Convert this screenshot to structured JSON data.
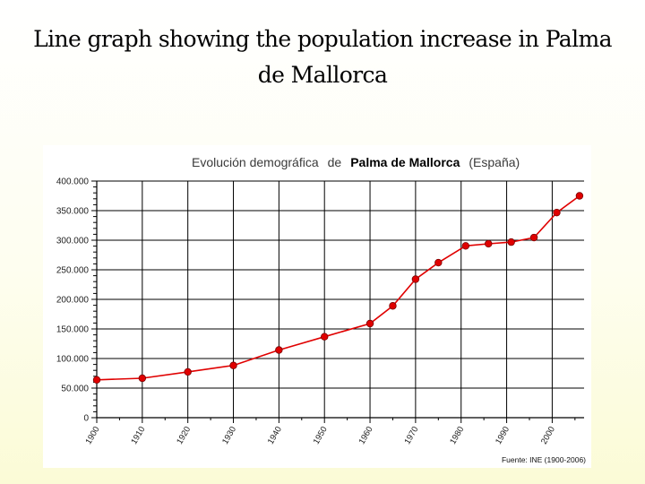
{
  "slide": {
    "title": "Line graph showing the population increase in Palma de Mallorca"
  },
  "chart_data": {
    "type": "line",
    "title_parts": [
      "Evolución demográfica",
      "de",
      "Palma de Mallorca",
      "(España)"
    ],
    "xlabel": "",
    "ylabel": "",
    "x_tick_labels": [
      "1900",
      "1910",
      "1920",
      "1930",
      "1940",
      "1950",
      "1960",
      "1970",
      "1980",
      "1990",
      "2000"
    ],
    "y_tick_labels": [
      "0",
      "50.000",
      "100.000",
      "150.000",
      "200.000",
      "250.000",
      "300.000",
      "350.000",
      "400.000"
    ],
    "xlim": [
      1900,
      2007
    ],
    "ylim": [
      0,
      400000
    ],
    "source": "Fuente: INE (1900-2006)",
    "legend": "none",
    "grid": true,
    "series": [
      {
        "color": "#e00000",
        "points": [
          {
            "x": 1900,
            "y": 63900
          },
          {
            "x": 1910,
            "y": 66700
          },
          {
            "x": 1920,
            "y": 77400
          },
          {
            "x": 1930,
            "y": 88300
          },
          {
            "x": 1940,
            "y": 114400
          },
          {
            "x": 1950,
            "y": 136800
          },
          {
            "x": 1960,
            "y": 159100
          },
          {
            "x": 1965,
            "y": 189000
          },
          {
            "x": 1970,
            "y": 234100
          },
          {
            "x": 1975,
            "y": 262000
          },
          {
            "x": 1981,
            "y": 290400
          },
          {
            "x": 1986,
            "y": 294000
          },
          {
            "x": 1991,
            "y": 296800
          },
          {
            "x": 1996,
            "y": 304500
          },
          {
            "x": 2001,
            "y": 346700
          },
          {
            "x": 2006,
            "y": 375000
          }
        ]
      }
    ]
  }
}
